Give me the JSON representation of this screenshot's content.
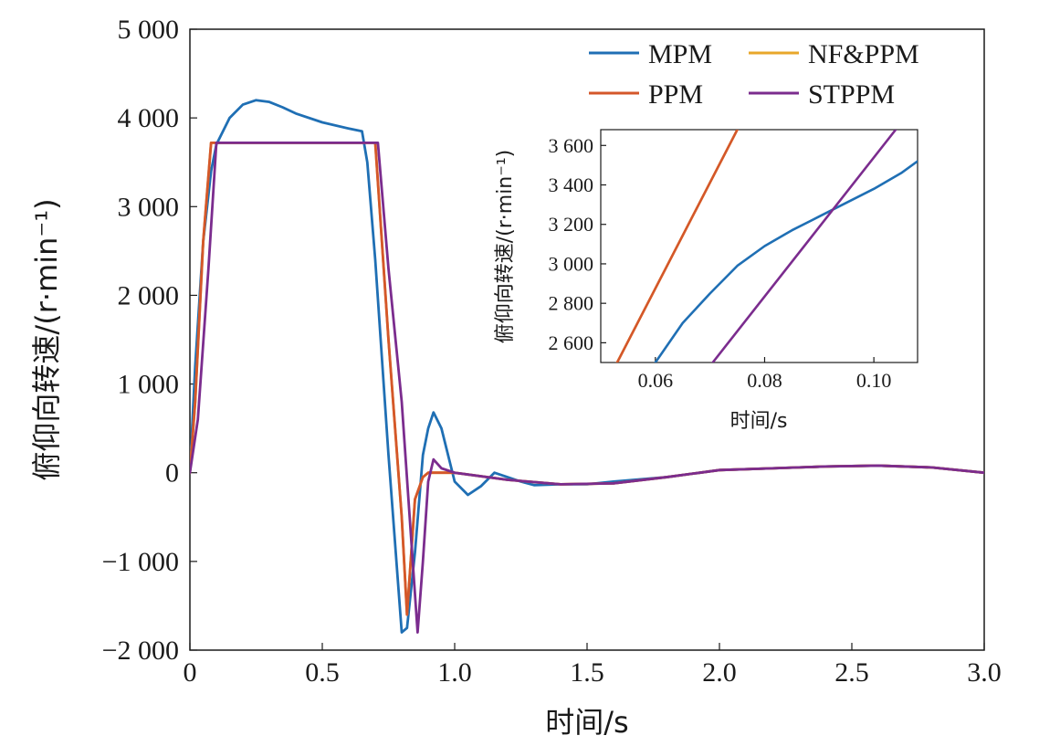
{
  "chart_data": [
    {
      "type": "line",
      "xlabel": "时间/s",
      "ylabel": "俯仰向转速/(r·min⁻¹)",
      "xlim": [
        0,
        3.0
      ],
      "ylim": [
        -2000,
        5000
      ],
      "x_ticks": [
        0,
        0.5,
        1.0,
        1.5,
        2.0,
        2.5,
        3.0
      ],
      "x_tick_labels": [
        "0",
        "0.5",
        "1.0",
        "1.5",
        "2.0",
        "2.5",
        "3.0"
      ],
      "y_ticks": [
        -2000,
        -1000,
        0,
        1000,
        2000,
        3000,
        4000,
        5000
      ],
      "y_tick_labels": [
        "−2 000",
        "−1 000",
        "0",
        "1 000",
        "2 000",
        "3 000",
        "4 000",
        "5 000"
      ],
      "grid": false,
      "legend_position": "top-right",
      "series": [
        {
          "name": "MPM",
          "color": "#1f6fb4",
          "x": [
            0,
            0.02,
            0.05,
            0.08,
            0.1,
            0.15,
            0.2,
            0.25,
            0.3,
            0.35,
            0.4,
            0.5,
            0.6,
            0.65,
            0.67,
            0.7,
            0.75,
            0.8,
            0.82,
            0.85,
            0.88,
            0.9,
            0.92,
            0.95,
            1.0,
            1.05,
            1.1,
            1.15,
            1.2,
            1.25,
            1.3,
            1.4,
            1.5,
            1.6,
            1.8,
            2.0,
            2.2,
            2.4,
            2.6,
            2.8,
            3.0
          ],
          "y": [
            0,
            1200,
            2600,
            3400,
            3700,
            4000,
            4150,
            4200,
            4180,
            4120,
            4050,
            3950,
            3880,
            3850,
            3500,
            2400,
            200,
            -1800,
            -1750,
            -900,
            200,
            500,
            680,
            500,
            -100,
            -250,
            -150,
            0,
            -50,
            -100,
            -140,
            -130,
            -130,
            -100,
            -50,
            30,
            50,
            70,
            80,
            60,
            0
          ]
        },
        {
          "name": "NF&PPM",
          "color": "#e8a72a",
          "x": [
            0,
            0.02,
            0.05,
            0.08,
            0.1,
            0.3,
            0.5,
            0.68,
            0.7,
            0.75,
            0.8,
            0.82,
            0.85,
            0.88,
            0.9,
            0.92,
            1.0,
            1.2,
            1.4,
            1.6,
            1.8,
            2.0,
            2.2,
            2.4,
            2.6,
            2.8,
            3.0
          ],
          "y": [
            0,
            800,
            2600,
            3720,
            3720,
            3720,
            3720,
            3720,
            3720,
            1500,
            -500,
            -1600,
            -300,
            -50,
            0,
            0,
            0,
            -80,
            -130,
            -120,
            -50,
            30,
            50,
            70,
            80,
            60,
            0
          ]
        },
        {
          "name": "PPM",
          "color": "#d4572a",
          "x": [
            0,
            0.02,
            0.05,
            0.08,
            0.1,
            0.3,
            0.5,
            0.68,
            0.7,
            0.75,
            0.8,
            0.82,
            0.85,
            0.88,
            0.9,
            0.92,
            1.0,
            1.2,
            1.4,
            1.6,
            1.8,
            2.0,
            2.2,
            2.4,
            2.6,
            2.8,
            3.0
          ],
          "y": [
            0,
            800,
            2600,
            3720,
            3720,
            3720,
            3720,
            3720,
            3720,
            1500,
            -500,
            -1600,
            -300,
            -50,
            0,
            0,
            0,
            -80,
            -130,
            -120,
            -50,
            30,
            50,
            70,
            80,
            60,
            0
          ]
        },
        {
          "name": "STPPM",
          "color": "#7b2c8e",
          "x": [
            0,
            0.03,
            0.07,
            0.1,
            0.11,
            0.3,
            0.5,
            0.7,
            0.71,
            0.75,
            0.8,
            0.86,
            0.88,
            0.9,
            0.92,
            0.95,
            1.0,
            1.2,
            1.4,
            1.6,
            1.8,
            2.0,
            2.2,
            2.4,
            2.6,
            2.8,
            3.0
          ],
          "y": [
            0,
            600,
            2300,
            3720,
            3720,
            3720,
            3720,
            3720,
            3720,
            2300,
            800,
            -1800,
            -1000,
            -100,
            150,
            50,
            0,
            -80,
            -130,
            -120,
            -50,
            30,
            50,
            70,
            80,
            60,
            0
          ]
        }
      ]
    },
    {
      "type": "line",
      "xlabel": "时间/s",
      "ylabel": "俯仰向转速/(r·min⁻¹)",
      "xlim": [
        0.05,
        0.108
      ],
      "ylim": [
        2500,
        3680
      ],
      "x_ticks": [
        0.06,
        0.08,
        0.1
      ],
      "x_tick_labels": [
        "0.06",
        "0.08",
        "0.10"
      ],
      "y_ticks": [
        2600,
        2800,
        3000,
        3200,
        3400,
        3600
      ],
      "y_tick_labels": [
        "2 600",
        "2 800",
        "3 000",
        "3 200",
        "3 400",
        "3 600"
      ],
      "series": [
        {
          "name": "MPM",
          "color": "#1f6fb4",
          "x": [
            0.06,
            0.065,
            0.07,
            0.075,
            0.08,
            0.085,
            0.09,
            0.095,
            0.1,
            0.105,
            0.108
          ],
          "y": [
            2500,
            2700,
            2850,
            2990,
            3090,
            3170,
            3240,
            3310,
            3380,
            3460,
            3520
          ]
        },
        {
          "name": "NF&PPM",
          "color": "#e8a72a",
          "x": [
            0.053,
            0.075
          ],
          "y": [
            2500,
            3680
          ]
        },
        {
          "name": "PPM",
          "color": "#d4572a",
          "x": [
            0.053,
            0.075
          ],
          "y": [
            2500,
            3680
          ]
        },
        {
          "name": "STPPM",
          "color": "#7b2c8e",
          "x": [
            0.0705,
            0.104
          ],
          "y": [
            2500,
            3680
          ]
        }
      ]
    }
  ]
}
